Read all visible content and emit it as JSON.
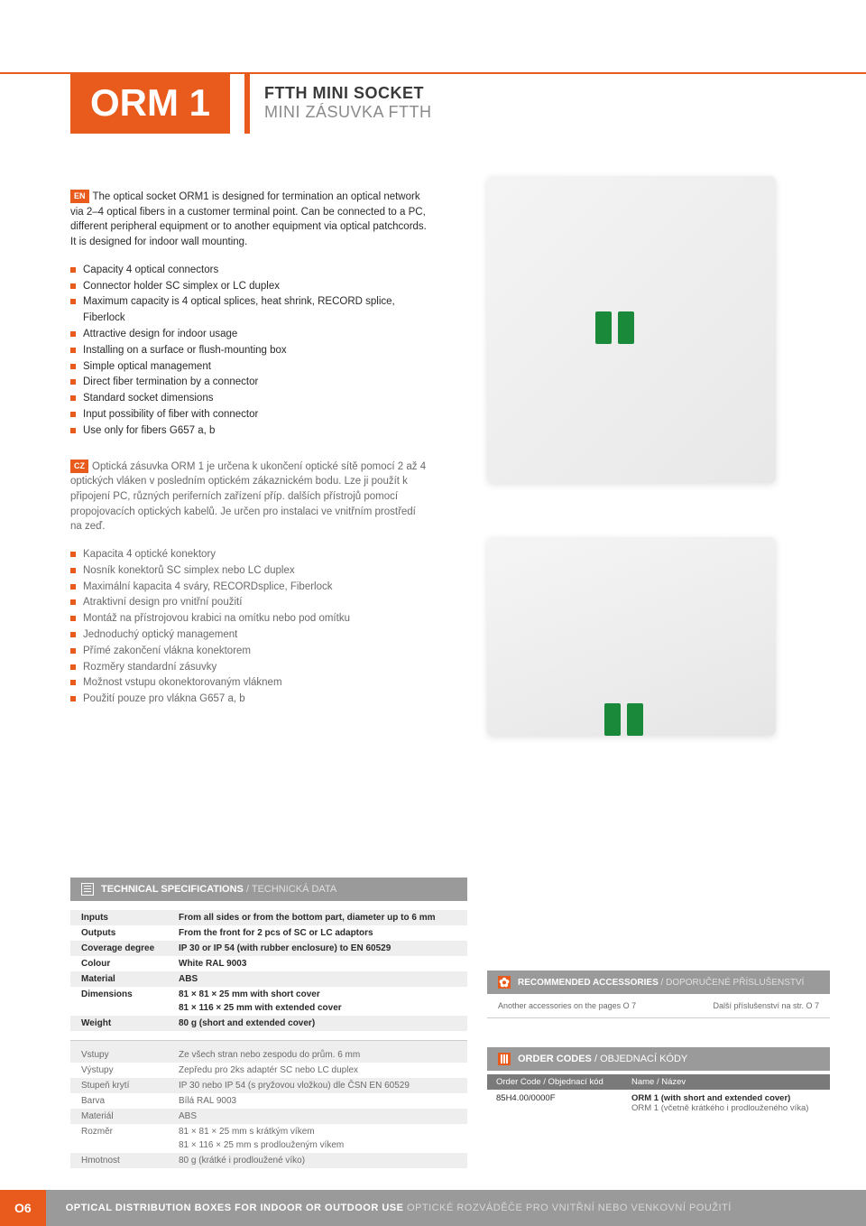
{
  "header": {
    "logo": "ORM 1",
    "title_en": "FTTH MINI SOCKET",
    "title_cz": "MINI ZÁSUVKA FTTH"
  },
  "lang": {
    "en": "EN",
    "cz": "CZ"
  },
  "intro_en": "The optical socket ORM1 is designed for termination an optical network via 2–4 optical fibers in a customer terminal point. Can be connected to a PC, different peripheral equipment or to another equipment via optical patchcords. It is designed for indoor wall mounting.",
  "features_en": [
    "Capacity 4 optical connectors",
    "Connector holder SC simplex or LC duplex",
    "Maximum capacity is 4 optical splices, heat shrink, RECORD splice, Fiberlock",
    "Attractive design for indoor usage",
    "Installing on a surface or flush-mounting box",
    "Simple optical management",
    "Direct fiber termination by a connector",
    "Standard socket dimensions",
    "Input possibility of fiber with connector",
    "Use only for fibers G657 a, b"
  ],
  "intro_cz": "Optická zásuvka ORM 1 je určena k ukončení optické sítě pomocí 2 až 4 optických vláken v posledním optickém zákaznickém bodu. Lze ji použít k připojení PC, různých periferních zařízení příp. dalších přístrojů pomocí propojovacích optických kabelů. Je určen pro instalaci ve vnitřním prostředí na zeď.",
  "features_cz": [
    "Kapacita 4 optické konektory",
    "Nosník konektorů SC simplex nebo LC duplex",
    "Maximální kapacita 4 sváry, RECORDsplice, Fiberlock",
    "Atraktivní design pro vnitřní použití",
    "Montáž na přístrojovou krabici na omítku nebo pod omítku",
    "Jednoduchý optický management",
    "Přímé zakončení vlákna konektorem",
    "Rozměry standardní zásuvky",
    "Možnost vstupu okonektorovaným vláknem",
    "Použití pouze pro vlákna G657 a, b"
  ],
  "tech": {
    "title_en": "TECHNICAL SPECIFICATIONS",
    "title_cz": " / TECHNICKÁ DATA",
    "rows_en": [
      {
        "k": "Inputs",
        "v": "From all sides or from the bottom part, diameter up to 6 mm"
      },
      {
        "k": "Outputs",
        "v": "From the front for 2 pcs of SC or LC adaptors"
      },
      {
        "k": "Coverage degree",
        "v": "IP 30 or IP 54 (with rubber enclosure) to EN 60529"
      },
      {
        "k": "Colour",
        "v": "White RAL 9003"
      },
      {
        "k": "Material",
        "v": "ABS"
      },
      {
        "k": "Dimensions",
        "v": "81 × 81 × 25 mm with short cover\n81 × 116 × 25 mm with extended cover"
      },
      {
        "k": "Weight",
        "v": "80 g (short and extended cover)"
      }
    ],
    "rows_cz": [
      {
        "k": "Vstupy",
        "v": "Ze všech stran nebo zespodu do prům. 6 mm"
      },
      {
        "k": "Výstupy",
        "v": "Zepředu pro 2ks adaptér SC nebo LC duplex"
      },
      {
        "k": "Stupeň krytí",
        "v": "IP 30 nebo IP 54 (s pryžovou vložkou) dle ČSN EN 60529"
      },
      {
        "k": "Barva",
        "v": "Bílá RAL 9003"
      },
      {
        "k": "Materiál",
        "v": "ABS"
      },
      {
        "k": "Rozměr",
        "v": "81 × 81 × 25 mm s krátkým víkem\n81 × 116 × 25 mm s prodlouženým víkem"
      },
      {
        "k": "Hmotnost",
        "v": "80 g (krátké i prodloužené víko)"
      }
    ]
  },
  "acc": {
    "title_en": "RECOMMENDED ACCESSORIES",
    "title_cz": " / DOPORUČENÉ PŘÍSLUŠENSTVÍ",
    "left": "Another accessories on the pages O 7",
    "right": "Další příslušenství na str. O 7"
  },
  "order": {
    "title_en": "ORDER CODES",
    "title_cz": " / OBJEDNACÍ KÓDY",
    "col1": "Order Code / Objednací kód",
    "col2": "Name / Název",
    "rows": [
      {
        "code": "85H4.00/0000F",
        "name_en": "ORM 1 (with short and extended cover)",
        "name_cz": "ORM 1 (včetně krátkého i prodlouženého víka)"
      }
    ]
  },
  "footer": {
    "page": "O6",
    "text_en": "OPTICAL DISTRIBUTION BOXES FOR INDOOR OR OUTDOOR USE",
    "text_cz": "   OPTICKÉ ROZVÁDĚČE PRO VNITŘNÍ NEBO VENKOVNÍ POUŽITÍ"
  },
  "colors": {
    "accent": "#e85b1c",
    "gray": "#9a9a9a"
  }
}
